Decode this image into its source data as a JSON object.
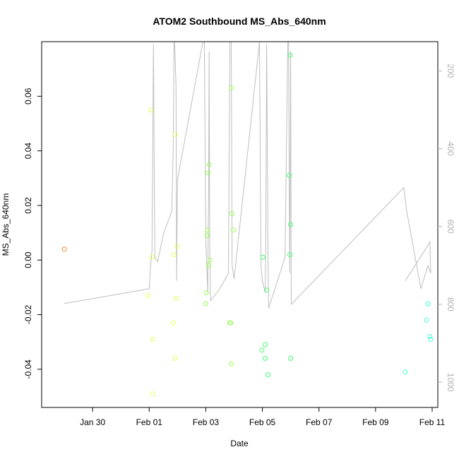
{
  "chart_data": {
    "type": "scatter",
    "title": "ATOM2 Southbound MS_Abs_640nm",
    "xlabel": "Date",
    "ylabel": "MS_Abs_640nm",
    "x_tick_labels": [
      "Jan 30",
      "Feb 01",
      "Feb 03",
      "Feb 05",
      "Feb 07",
      "Feb 09",
      "Feb 11"
    ],
    "x_ticks_day": [
      29.0,
      31.0,
      33.0,
      35.0,
      37.0,
      39.0,
      41.0
    ],
    "xlim_day": [
      27.2,
      41.2
    ],
    "y_tick_labels": [
      "-0.04",
      "-0.02",
      "0.00",
      "0.02",
      "0.04",
      "0.06"
    ],
    "y_ticks": [
      -0.04,
      -0.02,
      0.0,
      0.02,
      0.04,
      0.06
    ],
    "ylim": [
      -0.054,
      0.08
    ],
    "y2_tick_labels": [
      "200",
      "400",
      "600",
      "800",
      "1000"
    ],
    "y2_ticks": [
      200,
      400,
      600,
      800,
      1000
    ],
    "y2lim": [
      1065,
      125
    ],
    "grid": false,
    "colors": {
      "points": [
        "#ff7f24",
        "#e6ff5a",
        "#9aff52",
        "#40ff70",
        "#40ffd8"
      ],
      "depth_line": "#bebebe",
      "frame": "#000000"
    },
    "points": [
      {
        "day": 28.0,
        "y": 0.004,
        "color": 0
      },
      {
        "day": 30.95,
        "y": -0.013,
        "color": 1
      },
      {
        "day": 31.05,
        "y": 0.055,
        "color": 1
      },
      {
        "day": 31.1,
        "y": 0.001,
        "color": 1
      },
      {
        "day": 31.12,
        "y": -0.029,
        "color": 1
      },
      {
        "day": 31.12,
        "y": -0.049,
        "color": 1
      },
      {
        "day": 31.85,
        "y": -0.023,
        "color": 1
      },
      {
        "day": 31.88,
        "y": 0.002,
        "color": 1
      },
      {
        "day": 31.92,
        "y": 0.046,
        "color": 1
      },
      {
        "day": 31.92,
        "y": -0.036,
        "color": 1
      },
      {
        "day": 31.95,
        "y": -0.014,
        "color": 1
      },
      {
        "day": 32.0,
        "y": 0.005,
        "color": 1
      },
      {
        "day": 33.0,
        "y": -0.016,
        "color": 2
      },
      {
        "day": 33.02,
        "y": -0.012,
        "color": 2
      },
      {
        "day": 33.05,
        "y": 0.009,
        "color": 2
      },
      {
        "day": 33.07,
        "y": 0.011,
        "color": 2
      },
      {
        "day": 33.08,
        "y": 0.032,
        "color": 2
      },
      {
        "day": 33.1,
        "y": -0.002,
        "color": 2
      },
      {
        "day": 33.12,
        "y": 0.035,
        "color": 2
      },
      {
        "day": 33.15,
        "y": 0.0,
        "color": 2
      },
      {
        "day": 33.85,
        "y": -0.023,
        "color": 2
      },
      {
        "day": 33.88,
        "y": -0.023,
        "color": 2
      },
      {
        "day": 33.9,
        "y": -0.038,
        "color": 2
      },
      {
        "day": 33.9,
        "y": 0.063,
        "color": 2
      },
      {
        "day": 33.92,
        "y": 0.017,
        "color": 2
      },
      {
        "day": 33.98,
        "y": 0.011,
        "color": 2
      },
      {
        "day": 34.98,
        "y": -0.033,
        "color": 3
      },
      {
        "day": 35.02,
        "y": 0.001,
        "color": 3
      },
      {
        "day": 35.1,
        "y": -0.031,
        "color": 3
      },
      {
        "day": 35.1,
        "y": -0.036,
        "color": 3
      },
      {
        "day": 35.15,
        "y": -0.011,
        "color": 3
      },
      {
        "day": 35.2,
        "y": -0.042,
        "color": 3
      },
      {
        "day": 35.95,
        "y": 0.031,
        "color": 3
      },
      {
        "day": 35.97,
        "y": 0.002,
        "color": 3
      },
      {
        "day": 35.98,
        "y": 0.075,
        "color": 3
      },
      {
        "day": 36.0,
        "y": 0.013,
        "color": 3
      },
      {
        "day": 36.0,
        "y": -0.036,
        "color": 3
      },
      {
        "day": 40.05,
        "y": -0.041,
        "color": 4
      },
      {
        "day": 40.8,
        "y": -0.022,
        "color": 4
      },
      {
        "day": 40.85,
        "y": -0.016,
        "color": 4
      },
      {
        "day": 40.92,
        "y": -0.028,
        "color": 4
      },
      {
        "day": 40.95,
        "y": -0.029,
        "color": 4
      }
    ],
    "depth_line": [
      [
        28.0,
        798
      ],
      [
        31.0,
        760
      ],
      [
        31.05,
        700
      ],
      [
        31.1,
        660
      ],
      [
        31.15,
        130
      ],
      [
        31.2,
        680
      ],
      [
        31.3,
        690
      ],
      [
        31.5,
        620
      ],
      [
        31.8,
        560
      ],
      [
        31.85,
        400
      ],
      [
        31.88,
        125
      ],
      [
        31.9,
        130
      ],
      [
        31.95,
        240
      ],
      [
        31.97,
        740
      ],
      [
        32.0,
        480
      ],
      [
        32.9,
        125
      ],
      [
        32.95,
        125
      ],
      [
        33.0,
        640
      ],
      [
        33.03,
        690
      ],
      [
        33.05,
        730
      ],
      [
        33.07,
        770
      ],
      [
        33.08,
        660
      ],
      [
        33.1,
        530
      ],
      [
        33.12,
        150
      ],
      [
        33.14,
        650
      ],
      [
        33.17,
        790
      ],
      [
        33.5,
        760
      ],
      [
        33.8,
        720
      ],
      [
        33.85,
        125
      ],
      [
        33.9,
        125
      ],
      [
        33.93,
        700
      ],
      [
        34.0,
        735
      ],
      [
        34.9,
        125
      ],
      [
        34.95,
        700
      ],
      [
        35.0,
        740
      ],
      [
        35.1,
        770
      ],
      [
        35.12,
        640
      ],
      [
        35.15,
        130
      ],
      [
        35.2,
        680
      ],
      [
        35.22,
        810
      ],
      [
        35.8,
        680
      ],
      [
        35.9,
        125
      ],
      [
        35.93,
        125
      ],
      [
        35.95,
        500
      ],
      [
        35.97,
        720
      ],
      [
        36.0,
        150
      ],
      [
        36.02,
        800
      ],
      [
        40.0,
        500
      ],
      [
        40.1,
        560
      ],
      [
        40.6,
        760
      ],
      [
        40.85,
        700
      ],
      [
        40.95,
        720
      ],
      [
        40.92,
        640
      ],
      [
        40.05,
        740
      ]
    ]
  }
}
